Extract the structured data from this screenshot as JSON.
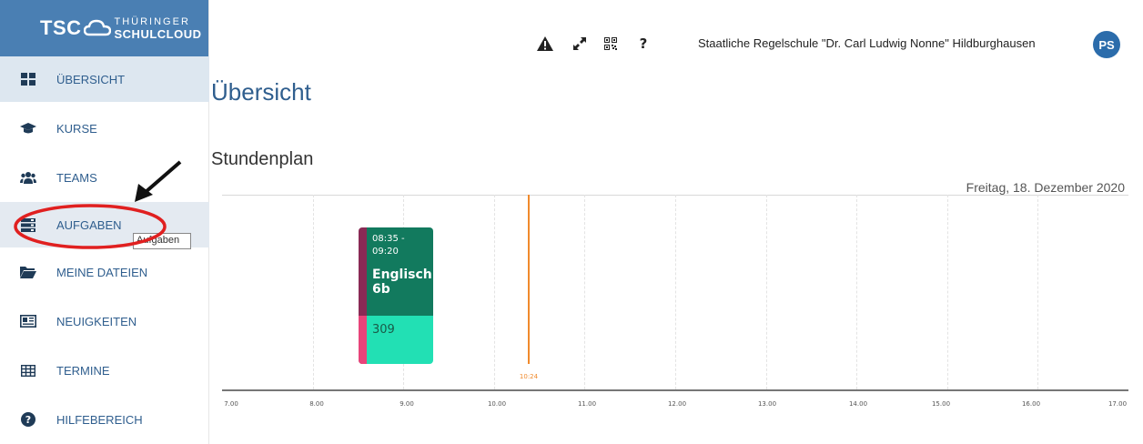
{
  "logo": {
    "short": "TSC",
    "line1": "THÜRINGER",
    "line2": "SCHULCLOUD"
  },
  "sidebar": {
    "items": [
      {
        "label": "ÜBERSICHT",
        "icon": "dashboard-icon"
      },
      {
        "label": "KURSE",
        "icon": "graduation-cap-icon"
      },
      {
        "label": "TEAMS",
        "icon": "users-icon"
      },
      {
        "label": "AUFGABEN",
        "icon": "tasks-icon"
      },
      {
        "label": "MEINE DATEIEN",
        "icon": "folder-icon"
      },
      {
        "label": "NEUIGKEITEN",
        "icon": "newspaper-icon"
      },
      {
        "label": "TERMINE",
        "icon": "calendar-icon"
      },
      {
        "label": "HILFEBEREICH",
        "icon": "help-icon"
      }
    ],
    "tooltip": "Aufgaben"
  },
  "header": {
    "school": "Staatliche Regelschule \"Dr. Carl Ludwig Nonne\" Hildburghausen",
    "avatar": "PS",
    "icons": [
      "warning-icon",
      "fullscreen-icon",
      "qr-code-icon",
      "help-icon"
    ]
  },
  "main": {
    "title": "Übersicht",
    "section": "Stundenplan",
    "date": "Freitag, 18. Dezember 2020"
  },
  "timetable": {
    "ticks": [
      "7.00",
      "8.00",
      "9.00",
      "10.00",
      "11.00",
      "12.00",
      "13.00",
      "14.00",
      "15.00",
      "16.00",
      "17.00"
    ],
    "now": "10:24",
    "lesson": {
      "time": "08:35 - 09:20",
      "subject": "Englisch 6b",
      "room": "309"
    }
  },
  "colors": {
    "accent": "#2f5e8e",
    "logo_bg": "#4a7fb3",
    "lesson_dark": "#127a5e",
    "lesson_light": "#22e0b4",
    "now_line": "#f08a2c",
    "annotation": "#e02020"
  }
}
